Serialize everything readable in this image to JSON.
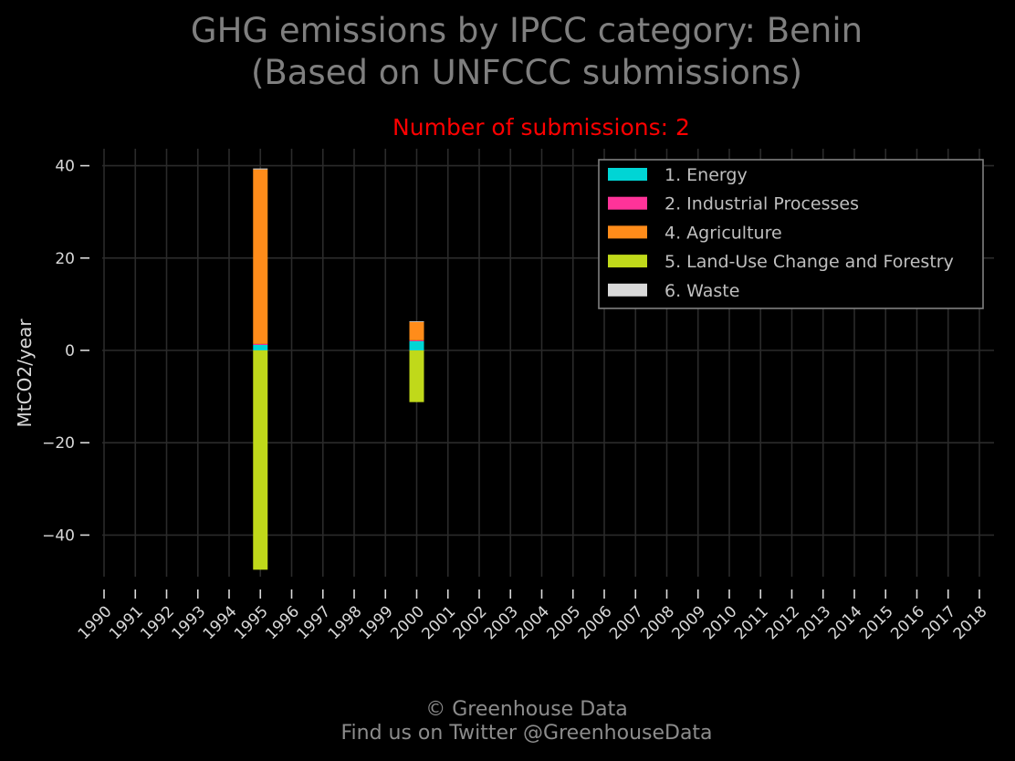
{
  "chart_data": {
    "type": "bar",
    "stacked": true,
    "title_lines": [
      "GHG emissions by IPCC category: Benin",
      "(Based on UNFCCC submissions)"
    ],
    "subtitle": "Number of submissions: 2",
    "subtitle_color": "#ff0000",
    "xlabel": "",
    "ylabel": "MtCO2/year",
    "ylim": [
      -52,
      44
    ],
    "yticks": [
      40,
      20,
      0,
      -20,
      -40
    ],
    "ytick_labels": [
      "40",
      "20",
      "0",
      "−20",
      "−40"
    ],
    "categories": [
      "1990",
      "1991",
      "1992",
      "1993",
      "1994",
      "1995",
      "1996",
      "1997",
      "1998",
      "1999",
      "2000",
      "2001",
      "2002",
      "2003",
      "2004",
      "2005",
      "2006",
      "2007",
      "2008",
      "2009",
      "2010",
      "2011",
      "2012",
      "2013",
      "2014",
      "2015",
      "2016",
      "2017",
      "2018"
    ],
    "grid": true,
    "legend_position": "top-right",
    "series": [
      {
        "name": "1. Energy",
        "color": "#00d5d5",
        "values": {
          "1995": 1.2,
          "2000": 2.0
        }
      },
      {
        "name": "2. Industrial Processes",
        "color": "#ff3399",
        "values": {
          "1995": 0.2,
          "2000": 0.2
        }
      },
      {
        "name": "4. Agriculture",
        "color": "#ff8c1a",
        "values": {
          "1995": 37.8,
          "2000": 4.0
        }
      },
      {
        "name": "5. Land-Use Change and Forestry",
        "color": "#c0d91a",
        "values": {
          "1995": -47.5,
          "2000": -11.2
        }
      },
      {
        "name": "6. Waste",
        "color": "#d9d9d9",
        "values": {
          "1995": 0.2,
          "2000": 0.1
        }
      }
    ]
  },
  "footer": {
    "line1": "© Greenhouse Data",
    "line2": "Find us on Twitter @GreenhouseData"
  },
  "colors": {
    "background": "#000000",
    "grid": "#2b2b2b",
    "title": "#7f7f7f",
    "ticks": "#d9d9d9",
    "legend_border": "#7f7f7f"
  }
}
